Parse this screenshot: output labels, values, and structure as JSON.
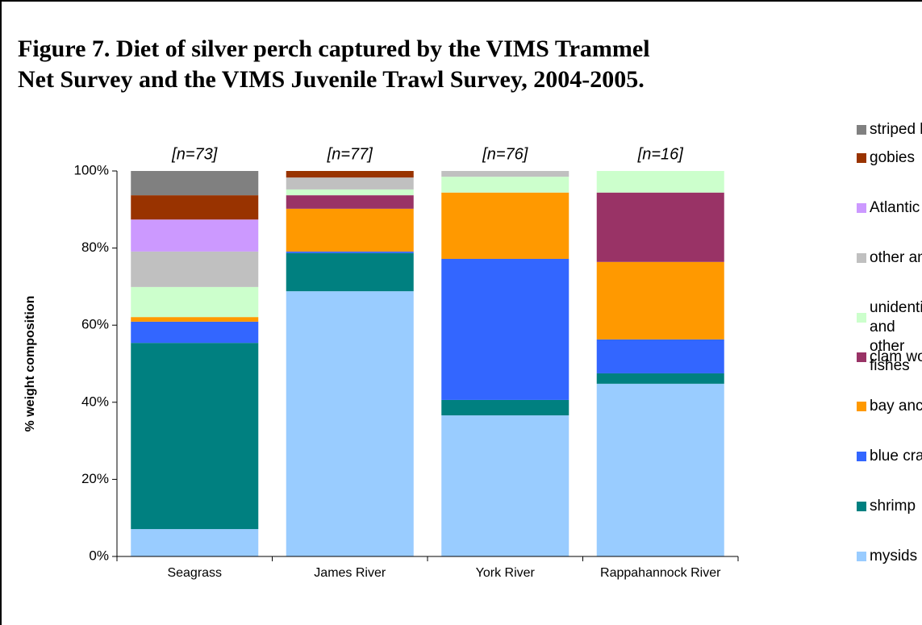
{
  "chart_data": {
    "type": "stacked_bar",
    "title": "Figure 7.  Diet of silver perch captured by the VIMS Trammel Net Survey and the VIMS Juvenile Trawl Survey, 2004-2005.",
    "y_label": "% weight composition",
    "categories": [
      "Seagrass",
      "James River",
      "York River",
      "Rappahannock River"
    ],
    "annotations": [
      "[n=73]",
      "[n=77]",
      "[n=76]",
      "[n=16]"
    ],
    "series": [
      {
        "name": "mysids",
        "color": "#99ccff",
        "values": [
          7.1,
          68.8,
          36.6,
          44.8
        ]
      },
      {
        "name": "shrimp",
        "color": "#008080",
        "values": [
          48.3,
          9.9,
          4.0,
          2.7
        ]
      },
      {
        "name": "blue crabs",
        "color": "#3366ff",
        "values": [
          5.5,
          0.4,
          36.6,
          8.8
        ]
      },
      {
        "name": "bay anchovy",
        "color": "#ff9900",
        "values": [
          1.2,
          11.1,
          17.2,
          20.1
        ]
      },
      {
        "name": "clam worms",
        "color": "#993366",
        "values": [
          0,
          3.5,
          0,
          18.0
        ]
      },
      {
        "name": "unidentified and other fishes",
        "color": "#ccffcc",
        "values": [
          7.8,
          1.5,
          4.1,
          5.6
        ]
      },
      {
        "name": "other animals",
        "color": "#c0c0c0",
        "values": [
          9.2,
          3.1,
          1.5,
          0
        ]
      },
      {
        "name": "Atlantic silversides",
        "color": "#cc99ff",
        "values": [
          8.3,
          0,
          0,
          0
        ]
      },
      {
        "name": "gobies",
        "color": "#993300",
        "values": [
          6.3,
          1.7,
          0,
          0
        ]
      },
      {
        "name": "striped killifish",
        "color": "#808080",
        "values": [
          6.3,
          0,
          0,
          0
        ]
      }
    ],
    "ylim": [
      0,
      100
    ],
    "yticks": [
      {
        "value": 0,
        "label": "0%"
      },
      {
        "value": 20,
        "label": "20%"
      },
      {
        "value": 40,
        "label": "40%"
      },
      {
        "value": 60,
        "label": "60%"
      },
      {
        "value": 80,
        "label": "80%"
      },
      {
        "value": 100,
        "label": "100%"
      }
    ],
    "legend": "right"
  }
}
